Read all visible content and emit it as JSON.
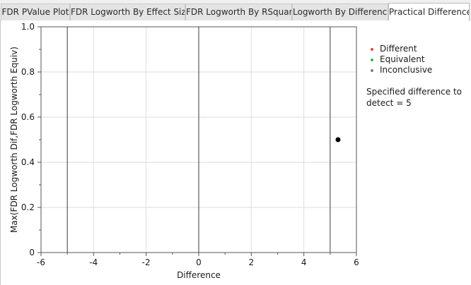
{
  "tabs": [
    {
      "label": "FDR PValue Plot",
      "active": false
    },
    {
      "label": "FDR Logworth By Effect Size",
      "active": false
    },
    {
      "label": "FDR Logworth By RSquare",
      "active": false
    },
    {
      "label": "Logworth By Difference",
      "active": false
    },
    {
      "label": "Practical Difference",
      "active": true
    }
  ],
  "legend": [
    {
      "label": "Different",
      "color": "#e8434e"
    },
    {
      "label": "Equivalent",
      "color": "#3bb34a"
    },
    {
      "label": "Inconclusive",
      "color": "#7f7f7f"
    }
  ],
  "note": "Specified difference to detect = 5",
  "chart_data": {
    "type": "scatter",
    "xlabel": "Difference",
    "ylabel": "Max(FDR Logworth Dif,FDR Logworth Equiv)",
    "xlim": [
      -6,
      6
    ],
    "ylim": [
      0,
      1
    ],
    "xticks": [
      -6,
      -4,
      -2,
      0,
      2,
      4,
      6
    ],
    "yticks": [
      0,
      0.2,
      0.4,
      0.6,
      0.8,
      1.0
    ],
    "ytick_labels": [
      "0",
      "0.2",
      "0.4",
      "0.6",
      "0.8",
      "1.0"
    ],
    "grid": true,
    "reference_lines_x": [
      -5,
      0,
      5
    ],
    "points": [
      {
        "x": 5.3,
        "y": 0.5,
        "color": "#000000"
      }
    ]
  }
}
